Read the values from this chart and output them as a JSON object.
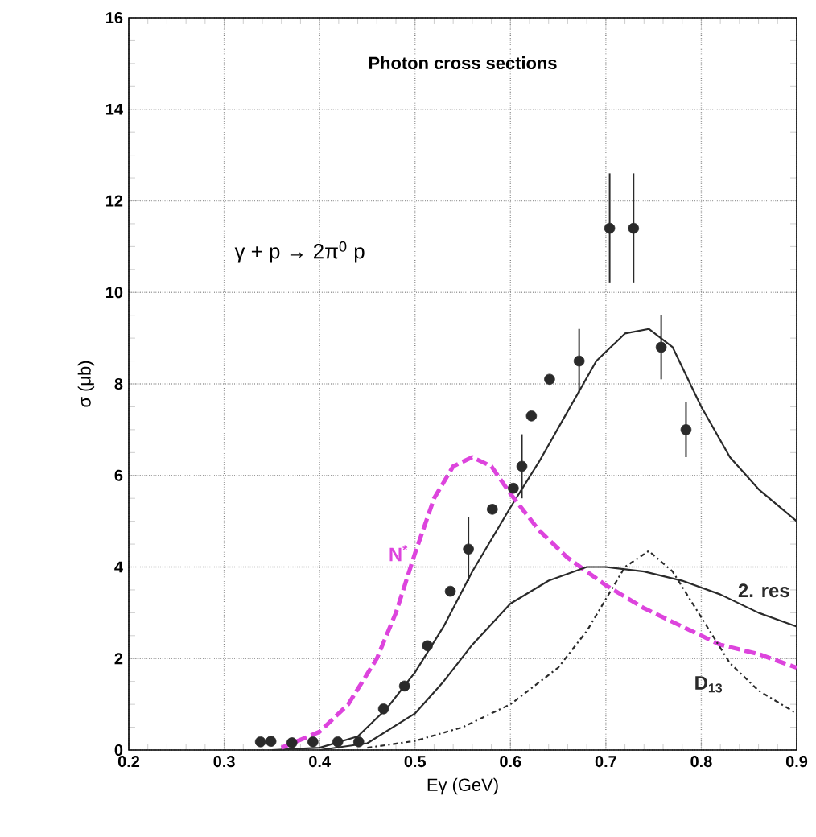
{
  "chart_data": {
    "type": "line",
    "title": "Photon cross sections",
    "xlabel": "Eγ (GeV)",
    "ylabel": "σ (μb)",
    "annotations": [
      "γ + p → 2π$^{0}$ p"
    ],
    "xlim": [
      0.2,
      0.9
    ],
    "ylim": [
      0,
      16
    ],
    "xticks": [
      0.2,
      0.3,
      0.4,
      0.5,
      0.6,
      0.7,
      0.8,
      0.9
    ],
    "yticks": [
      0,
      2,
      4,
      6,
      8,
      10,
      12,
      14,
      16
    ],
    "grid": true,
    "series": [
      {
        "type": "scatter",
        "color": "#2a2a2a",
        "x": [
          0.338,
          0.349,
          0.371,
          0.393,
          0.419,
          0.441,
          0.467,
          0.489,
          0.513,
          0.537,
          0.556,
          0.581,
          0.603,
          0.612,
          0.622,
          0.641,
          0.672,
          0.704,
          0.729,
          0.758,
          0.784
        ],
        "values": [
          0.18,
          0.19,
          0.16,
          0.18,
          0.18,
          0.18,
          0.9,
          1.4,
          2.28,
          3.47,
          4.39,
          5.26,
          5.72,
          6.2,
          7.3,
          8.1,
          8.5,
          11.4,
          11.4,
          8.8,
          7.0
        ],
        "errors": [
          null,
          null,
          null,
          null,
          null,
          null,
          null,
          null,
          null,
          null,
          0.7,
          null,
          null,
          0.7,
          null,
          null,
          0.7,
          1.2,
          1.2,
          0.7,
          0.6
        ]
      },
      {
        "line_style": "solid",
        "color": "#2a2a2a",
        "x": [
          0.35,
          0.4,
          0.44,
          0.47,
          0.5,
          0.53,
          0.56,
          0.6,
          0.63,
          0.66,
          0.69,
          0.72,
          0.745,
          0.77,
          0.8,
          0.83,
          0.86,
          0.9
        ],
        "values": [
          0,
          0.05,
          0.3,
          0.9,
          1.7,
          2.7,
          3.9,
          5.3,
          6.3,
          7.4,
          8.5,
          9.1,
          9.2,
          8.8,
          7.5,
          6.4,
          5.7,
          5.0
        ]
      },
      {
        "name": "N$^{*}$",
        "line_style": "dashed",
        "color": "#dd44dd",
        "x": [
          0.36,
          0.4,
          0.43,
          0.46,
          0.48,
          0.5,
          0.52,
          0.54,
          0.56,
          0.58,
          0.6,
          0.63,
          0.66,
          0.7,
          0.74,
          0.78,
          0.82,
          0.86,
          0.9
        ],
        "values": [
          0.05,
          0.4,
          1.0,
          2.0,
          3.0,
          4.3,
          5.5,
          6.2,
          6.4,
          6.2,
          5.6,
          4.8,
          4.2,
          3.6,
          3.1,
          2.7,
          2.3,
          2.1,
          1.8
        ]
      },
      {
        "name": "2. res",
        "line_style": "solid",
        "color": "#2a2a2a",
        "x": [
          0.4,
          0.45,
          0.5,
          0.53,
          0.56,
          0.6,
          0.64,
          0.68,
          0.7,
          0.74,
          0.78,
          0.82,
          0.86,
          0.9
        ],
        "values": [
          0,
          0.15,
          0.8,
          1.5,
          2.3,
          3.2,
          3.7,
          4.0,
          4.0,
          3.9,
          3.7,
          3.4,
          3.0,
          2.7
        ]
      },
      {
        "name": "D$_{13}$",
        "line_style": "dashdot",
        "color": "#2a2a2a",
        "x": [
          0.45,
          0.5,
          0.55,
          0.6,
          0.65,
          0.68,
          0.7,
          0.72,
          0.745,
          0.77,
          0.8,
          0.83,
          0.86,
          0.9
        ],
        "values": [
          0.05,
          0.2,
          0.5,
          1.0,
          1.8,
          2.6,
          3.3,
          4.0,
          4.35,
          3.9,
          2.9,
          1.9,
          1.3,
          0.8
        ]
      }
    ]
  }
}
